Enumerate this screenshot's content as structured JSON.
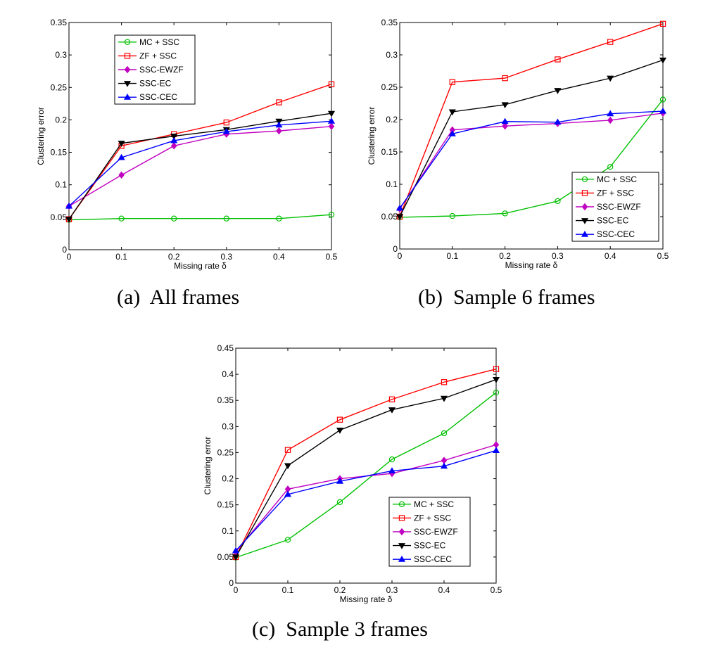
{
  "figure": {
    "captions": [
      {
        "label": "(a)",
        "text": "All frames"
      },
      {
        "label": "(b)",
        "text": "Sample 6 frames"
      },
      {
        "label": "(c)",
        "text": "Sample 3 frames"
      }
    ]
  },
  "colors": {
    "MC + SSC": "#00c000",
    "ZF + SSC": "#ff0000",
    "SSC-EWZF": "#c000c0",
    "SSC-EC": "#000000",
    "SSC-CEC": "#0000ff"
  },
  "markers": {
    "MC + SSC": "circle",
    "ZF + SSC": "square",
    "SSC-EWZF": "diamond",
    "SSC-EC": "triangle-down",
    "SSC-CEC": "triangle-up"
  },
  "chart_data": [
    {
      "type": "line",
      "id": "a",
      "xlabel": "Missing rate δ",
      "ylabel": "Clustering error",
      "x": [
        0,
        0.1,
        0.2,
        0.3,
        0.4,
        0.5
      ],
      "xlim": [
        0,
        0.5
      ],
      "ylim": [
        0,
        0.35
      ],
      "xticks": [
        "0",
        "0.1",
        "0.2",
        "0.3",
        "0.4",
        "0.5"
      ],
      "yticks": [
        "0",
        "0.05",
        "0.1",
        "0.15",
        "0.2",
        "0.25",
        "0.3",
        "0.35"
      ],
      "grid": false,
      "legend_position": "top-left",
      "series": [
        {
          "name": "MC + SSC",
          "values": [
            0.046,
            0.048,
            0.048,
            0.048,
            0.048,
            0.054
          ]
        },
        {
          "name": "ZF + SSC",
          "values": [
            0.047,
            0.16,
            0.178,
            0.196,
            0.227,
            0.255
          ]
        },
        {
          "name": "SSC-EWZF",
          "values": [
            0.067,
            0.115,
            0.16,
            0.178,
            0.183,
            0.19
          ]
        },
        {
          "name": "SSC-EC",
          "values": [
            0.047,
            0.164,
            0.175,
            0.185,
            0.198,
            0.21
          ]
        },
        {
          "name": "SSC-CEC",
          "values": [
            0.067,
            0.142,
            0.168,
            0.182,
            0.192,
            0.198
          ]
        }
      ]
    },
    {
      "type": "line",
      "id": "b",
      "xlabel": "Missing rate δ",
      "ylabel": "Clustering error",
      "x": [
        0,
        0.1,
        0.2,
        0.3,
        0.4,
        0.5
      ],
      "xlim": [
        0,
        0.5
      ],
      "ylim": [
        0,
        0.35
      ],
      "xticks": [
        "0",
        "0.1",
        "0.2",
        "0.3",
        "0.4",
        "0.5"
      ],
      "yticks": [
        "0",
        "0.05",
        "0.1",
        "0.15",
        "0.2",
        "0.25",
        "0.3",
        "0.35"
      ],
      "grid": false,
      "legend_position": "bottom-right",
      "series": [
        {
          "name": "MC + SSC",
          "values": [
            0.049,
            0.051,
            0.055,
            0.074,
            0.127,
            0.231
          ]
        },
        {
          "name": "ZF + SSC",
          "values": [
            0.05,
            0.258,
            0.264,
            0.293,
            0.32,
            0.348
          ]
        },
        {
          "name": "SSC-EWZF",
          "values": [
            0.062,
            0.184,
            0.19,
            0.194,
            0.199,
            0.21
          ]
        },
        {
          "name": "SSC-EC",
          "values": [
            0.05,
            0.212,
            0.223,
            0.245,
            0.264,
            0.292
          ]
        },
        {
          "name": "SSC-CEC",
          "values": [
            0.063,
            0.178,
            0.197,
            0.196,
            0.209,
            0.213
          ]
        }
      ]
    },
    {
      "type": "line",
      "id": "c",
      "xlabel": "Missing rate δ",
      "ylabel": "Clustering error",
      "x": [
        0,
        0.1,
        0.2,
        0.3,
        0.4,
        0.5
      ],
      "xlim": [
        0,
        0.5
      ],
      "ylim": [
        0,
        0.45
      ],
      "xticks": [
        "0",
        "0.1",
        "0.2",
        "0.3",
        "0.4",
        "0.5"
      ],
      "yticks": [
        "0",
        "0.05",
        "0.1",
        "0.15",
        "0.2",
        "0.25",
        "0.3",
        "0.35",
        "0.4",
        "0.45"
      ],
      "grid": false,
      "legend_position": "bottom-right",
      "series": [
        {
          "name": "MC + SSC",
          "values": [
            0.049,
            0.083,
            0.155,
            0.237,
            0.287,
            0.365
          ]
        },
        {
          "name": "ZF + SSC",
          "values": [
            0.05,
            0.255,
            0.313,
            0.352,
            0.385,
            0.41
          ]
        },
        {
          "name": "SSC-EWZF",
          "values": [
            0.06,
            0.18,
            0.2,
            0.21,
            0.235,
            0.265
          ]
        },
        {
          "name": "SSC-EC",
          "values": [
            0.05,
            0.225,
            0.293,
            0.332,
            0.354,
            0.39
          ]
        },
        {
          "name": "SSC-CEC",
          "values": [
            0.062,
            0.17,
            0.195,
            0.215,
            0.224,
            0.254
          ]
        }
      ]
    }
  ]
}
